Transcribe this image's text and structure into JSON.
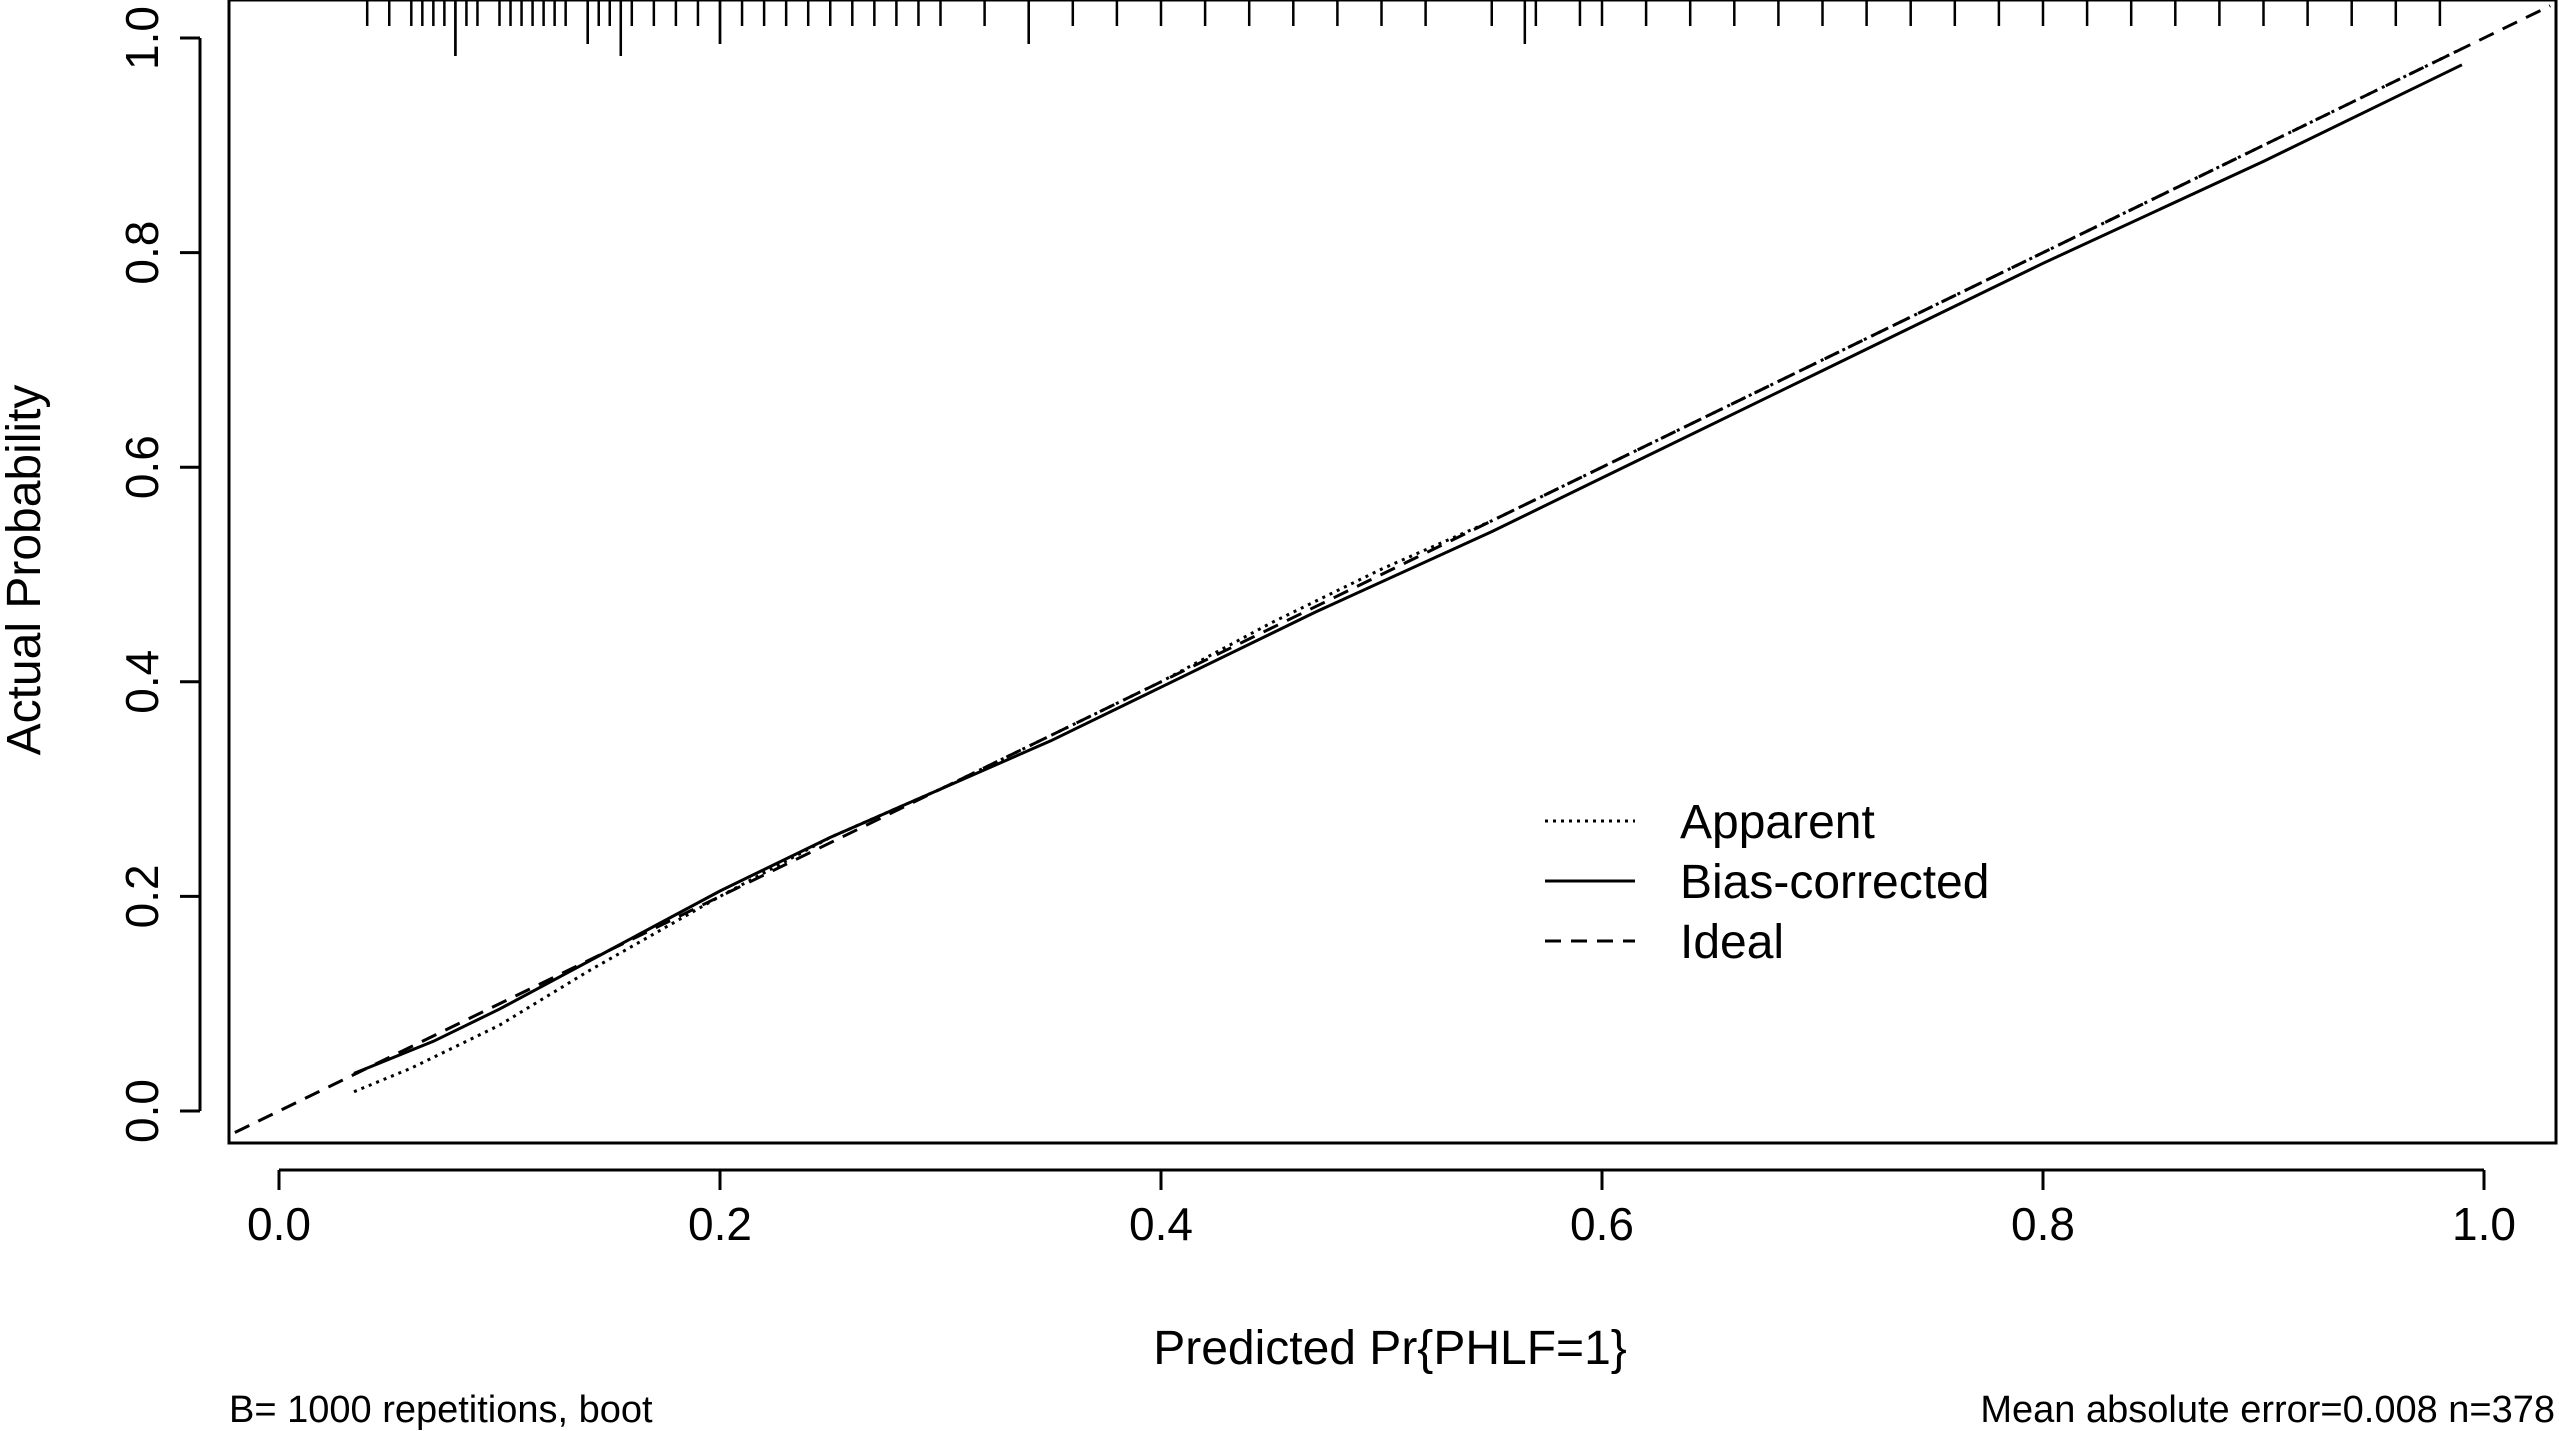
{
  "chart_data": {
    "type": "line",
    "title": "",
    "xlabel": "Predicted Pr{PHLF=1}",
    "ylabel": "Actual Probability",
    "xlim": [
      -0.02,
      1.03
    ],
    "ylim": [
      -0.02,
      1.03
    ],
    "x_ticks": [
      "0.0",
      "0.2",
      "0.4",
      "0.6",
      "0.8",
      "1.0"
    ],
    "y_ticks": [
      "0.0",
      "0.2",
      "0.4",
      "0.6",
      "0.8",
      "1.0"
    ],
    "grid": false,
    "legend_position": "center-right",
    "series": [
      {
        "name": "Apparent",
        "linestyle": "dotted",
        "x": [
          0.034,
          0.06,
          0.1,
          0.14,
          0.2,
          0.25,
          0.3,
          0.35,
          0.4,
          0.45,
          0.5,
          0.55,
          0.6,
          0.7,
          0.8,
          0.9,
          0.99
        ],
        "y": [
          0.018,
          0.04,
          0.08,
          0.13,
          0.2,
          0.255,
          0.3,
          0.35,
          0.4,
          0.455,
          0.505,
          0.55,
          0.6,
          0.7,
          0.8,
          0.9,
          0.99
        ]
      },
      {
        "name": "Bias-corrected",
        "linestyle": "solid",
        "x": [
          0.034,
          0.07,
          0.1,
          0.15,
          0.2,
          0.25,
          0.3,
          0.35,
          0.4,
          0.47,
          0.55,
          0.6,
          0.7,
          0.8,
          0.9,
          0.99
        ],
        "y": [
          0.035,
          0.065,
          0.095,
          0.15,
          0.205,
          0.255,
          0.3,
          0.345,
          0.395,
          0.465,
          0.54,
          0.59,
          0.69,
          0.79,
          0.885,
          0.975
        ]
      },
      {
        "name": "Ideal",
        "linestyle": "dashed",
        "x": [
          -0.02,
          1.03
        ],
        "y": [
          -0.02,
          1.03
        ]
      }
    ],
    "rug_x": [
      0.04,
      0.05,
      0.06,
      0.065,
      0.07,
      0.075,
      0.08,
      0.085,
      0.09,
      0.1,
      0.105,
      0.11,
      0.115,
      0.12,
      0.125,
      0.13,
      0.14,
      0.145,
      0.15,
      0.155,
      0.16,
      0.17,
      0.18,
      0.19,
      0.2,
      0.21,
      0.22,
      0.23,
      0.24,
      0.25,
      0.26,
      0.27,
      0.28,
      0.29,
      0.3,
      0.32,
      0.34,
      0.36,
      0.38,
      0.4,
      0.42,
      0.44,
      0.46,
      0.48,
      0.5,
      0.52,
      0.55,
      0.57,
      0.59,
      0.6,
      0.62,
      0.64,
      0.66,
      0.68,
      0.7,
      0.72,
      0.74,
      0.76,
      0.78,
      0.8,
      0.82,
      0.84,
      0.86,
      0.88,
      0.9,
      0.92,
      0.94,
      0.96,
      0.98
    ],
    "rug_long_x": [
      0.08,
      0.155
    ],
    "rug_medium_x": [
      0.14,
      0.2,
      0.34,
      0.565
    ]
  },
  "footer": {
    "left": "B= 1000 repetitions, boot",
    "right": "Mean absolute error=0.008 n=378"
  }
}
